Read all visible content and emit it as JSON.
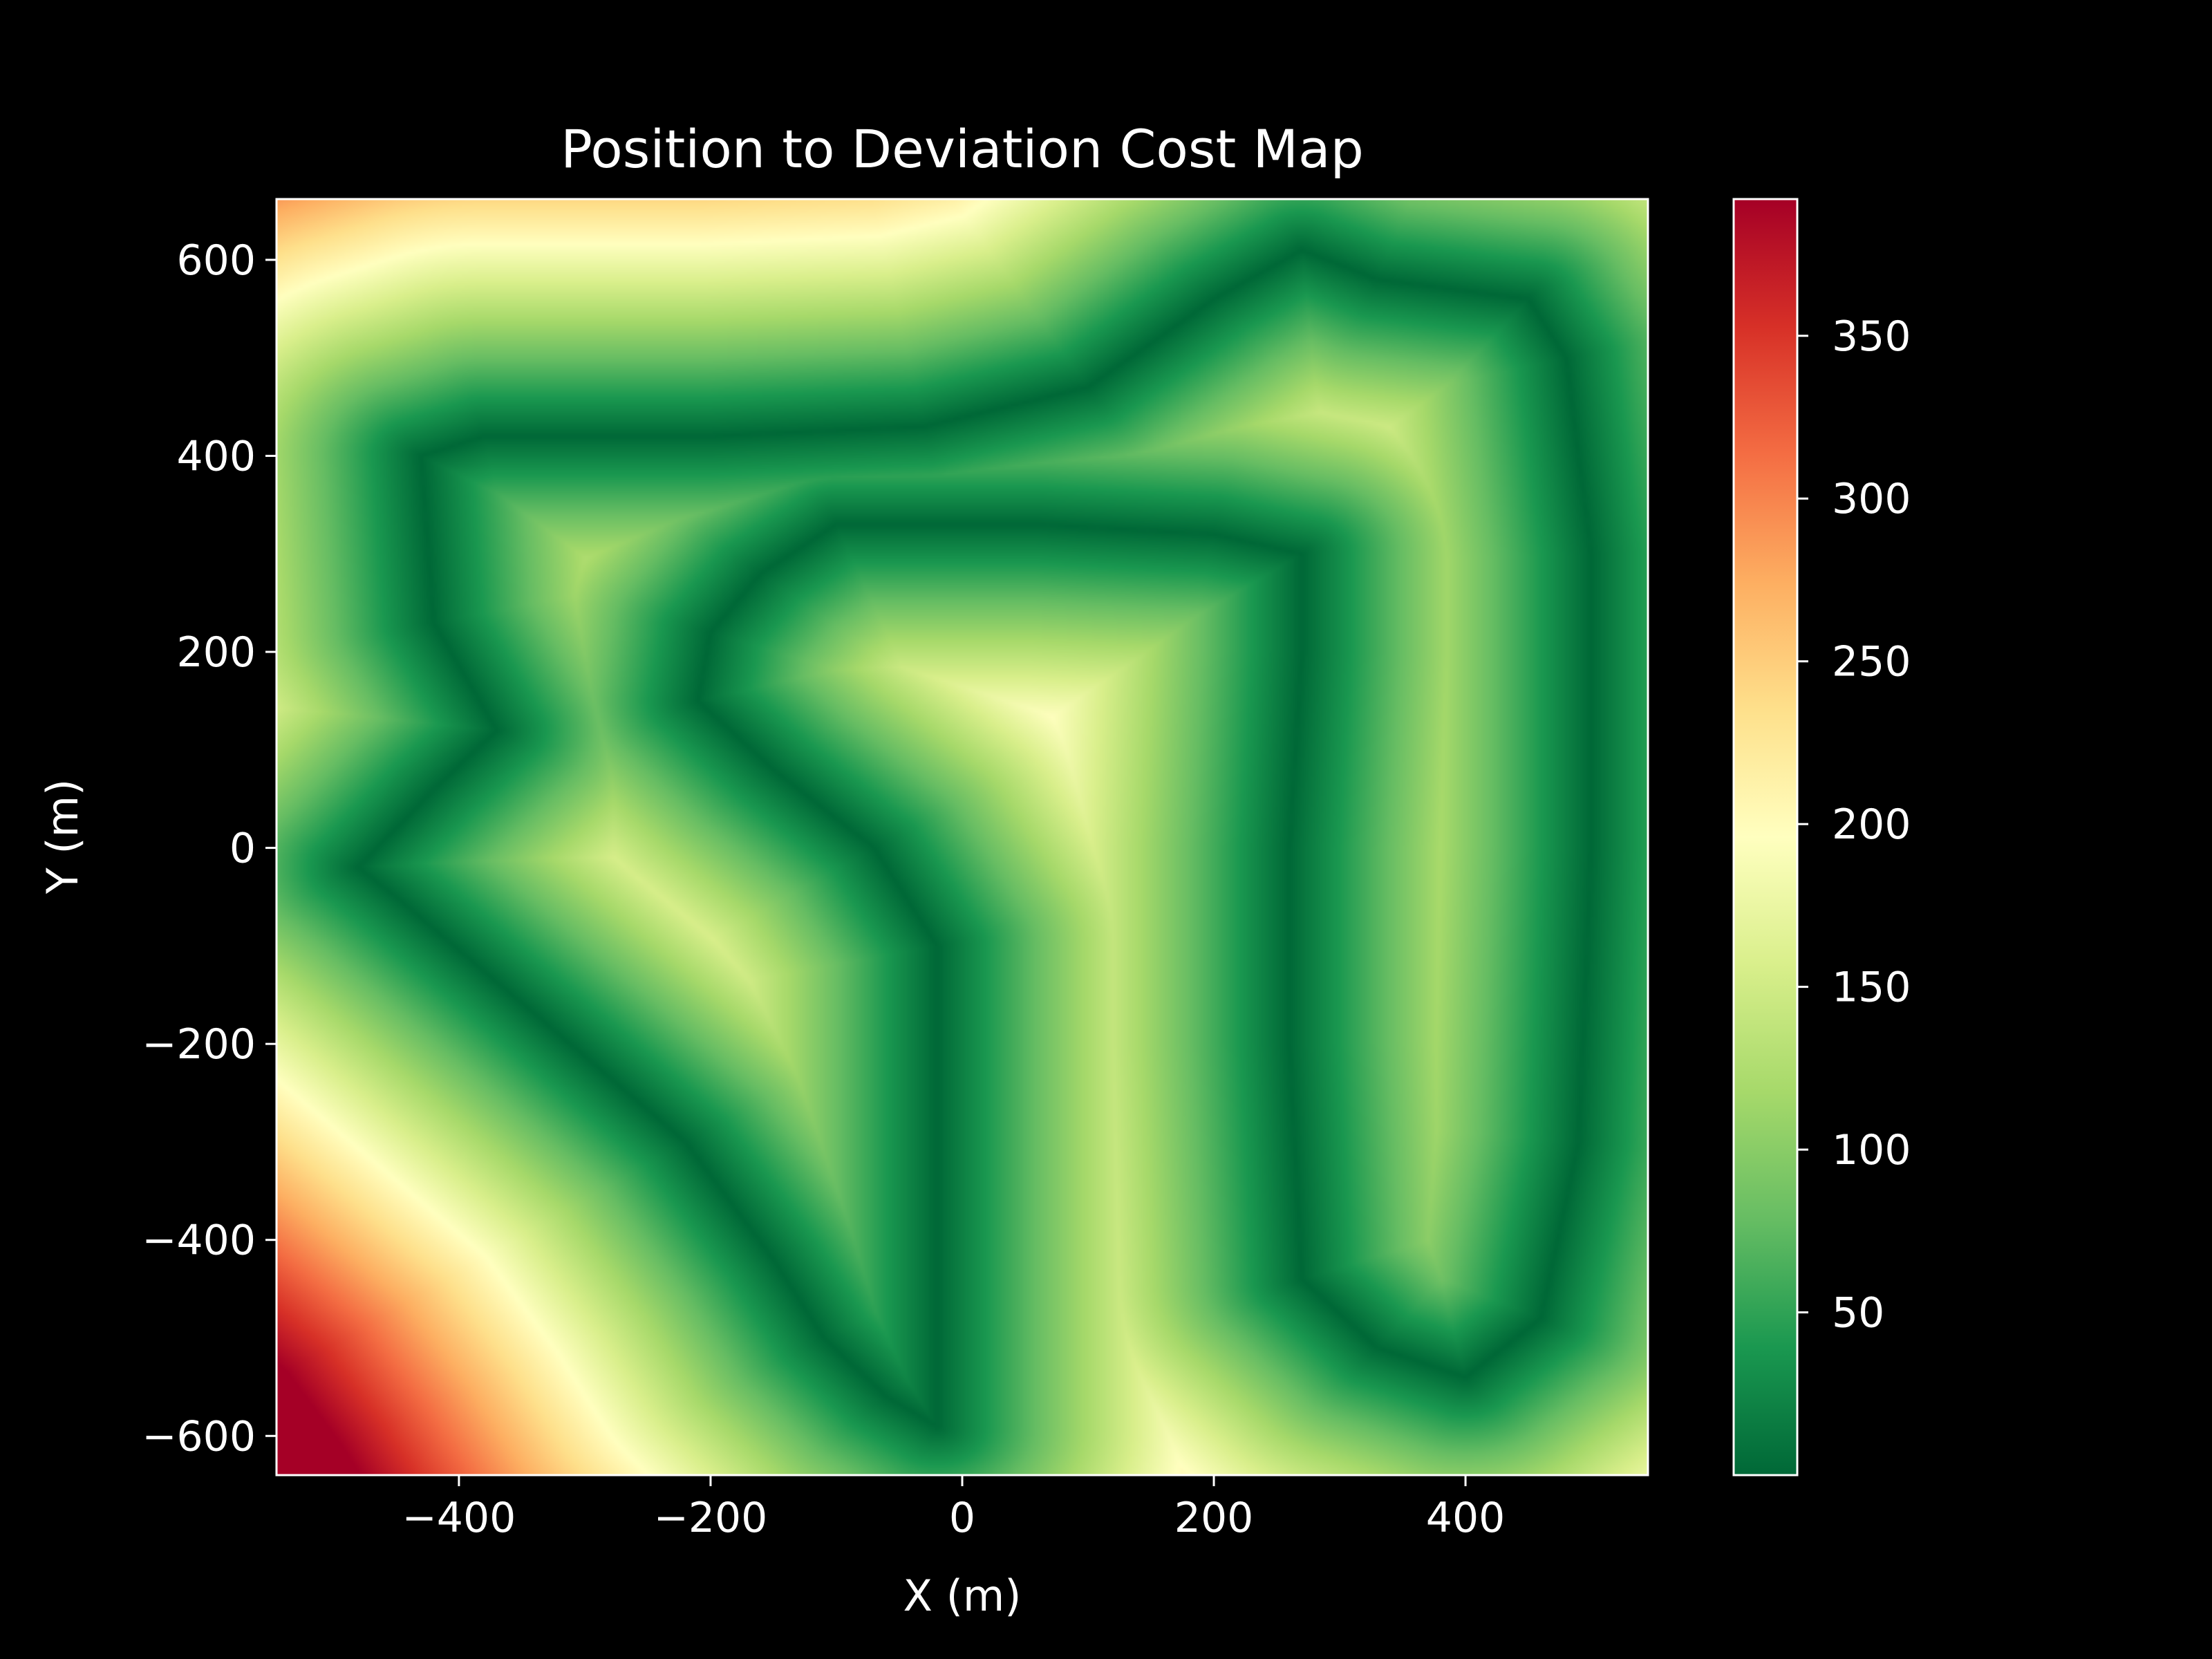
{
  "chart_data": {
    "type": "heatmap",
    "title": "Position to Deviation Cost Map",
    "xlabel": "X (m)",
    "ylabel": "Y (m)",
    "xlim": [
      -545,
      545
    ],
    "ylim": [
      -640,
      662
    ],
    "x_ticks": [
      -400,
      -200,
      0,
      200,
      400
    ],
    "x_tick_labels": [
      "−400",
      "−200",
      "0",
      "200",
      "400"
    ],
    "y_ticks": [
      -600,
      -400,
      -200,
      0,
      200,
      400,
      600
    ],
    "y_tick_labels": [
      "−600",
      "−400",
      "−200",
      "0",
      "200",
      "400",
      "600"
    ],
    "colorbar": {
      "colormap": "RdYlGn_r",
      "range": [
        0,
        392
      ],
      "ticks": [
        50,
        100,
        150,
        200,
        250,
        300,
        350
      ],
      "tick_labels": [
        "50",
        "100",
        "150",
        "200",
        "250",
        "300",
        "350"
      ]
    },
    "path": [
      [
        -20,
        -590
      ],
      [
        -60,
        -560
      ],
      [
        -110,
        -500
      ],
      [
        -150,
        -420
      ],
      [
        -220,
        -300
      ],
      [
        -330,
        -180
      ],
      [
        -450,
        -50
      ],
      [
        -480,
        -20
      ],
      [
        -420,
        60
      ],
      [
        -370,
        120
      ],
      [
        -420,
        230
      ],
      [
        -430,
        400
      ],
      [
        -380,
        420
      ],
      [
        -200,
        420
      ],
      [
        -30,
        430
      ],
      [
        100,
        470
      ],
      [
        200,
        560
      ],
      [
        270,
        610
      ],
      [
        330,
        580
      ],
      [
        450,
        560
      ],
      [
        480,
        500
      ],
      [
        500,
        300
      ],
      [
        500,
        0
      ],
      [
        490,
        -300
      ],
      [
        460,
        -480
      ],
      [
        400,
        -540
      ],
      [
        330,
        -510
      ],
      [
        270,
        -440
      ],
      [
        260,
        -200
      ],
      [
        260,
        0
      ],
      [
        270,
        200
      ],
      [
        270,
        300
      ],
      [
        200,
        320
      ],
      [
        60,
        330
      ],
      [
        -100,
        330
      ],
      [
        -160,
        280
      ],
      [
        -200,
        220
      ],
      [
        -210,
        150
      ],
      [
        -150,
        80
      ],
      [
        -70,
        0
      ],
      [
        -20,
        -100
      ],
      [
        -20,
        -300
      ],
      [
        -20,
        -590
      ]
    ],
    "grid": false,
    "background": "#000000"
  }
}
